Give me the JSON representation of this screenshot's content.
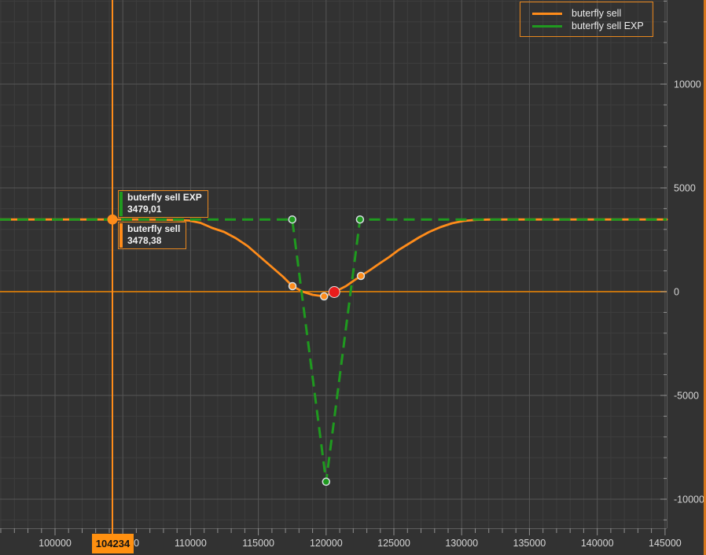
{
  "colors": {
    "background": "#323232",
    "grid_minor": "#3e3e3e",
    "grid_major": "#565656",
    "axis_boundary": "#5e5e5e",
    "tick": "#909090",
    "axis_text": "#d6d6d6",
    "orange": "#ff8c1a",
    "green": "#1f9a1f",
    "red": "#e81c1c",
    "zero_line": "#c3730f",
    "marker_ring": "#d7dfe4",
    "window_border": "#d4761c",
    "tooltip_border": "#e8871e",
    "crosshair_label_bg": "#ff9010",
    "crosshair_label_text": "#141414"
  },
  "legend": {
    "items": [
      {
        "label": "buterfly sell",
        "color": "#ff8c1a",
        "dashed": false
      },
      {
        "label": "buterfly sell EXP",
        "color": "#1f9a1f",
        "dashed": true
      }
    ]
  },
  "tooltips": {
    "exp": {
      "title": "buterfly sell EXP",
      "value": "3479,01",
      "accent": "#1f9a1f"
    },
    "sell": {
      "title": "buterfly sell",
      "value": "3478,38",
      "accent": "#ff8c1a"
    }
  },
  "crosshair": {
    "label": "104234",
    "x_value": 104234
  },
  "chart_data": {
    "type": "line",
    "x_range": [
      95940,
      145124
    ],
    "y_range": [
      -11401,
      14053
    ],
    "x_major_step": 5000,
    "x_minor_step": 1000,
    "y_major_step": 5000,
    "y_minor_step": 1000,
    "grid": true,
    "legend_position": "top-right",
    "x_tick_values": [
      100000,
      105000,
      110000,
      115000,
      120000,
      125000,
      130000,
      135000,
      140000,
      145000
    ],
    "x_tick_labels": [
      "100000",
      "105000",
      "110000",
      "115000",
      "120000",
      "125000",
      "130000",
      "135000",
      "140000",
      "145000"
    ],
    "y_tick_values": [
      10000,
      5000,
      0,
      -5000,
      -10000
    ],
    "y_tick_labels": [
      "10000",
      "5000",
      "0",
      "-5000",
      "-10000"
    ],
    "series": [
      {
        "name": "buterfly sell",
        "color": "#ff8c1a",
        "style": "solid",
        "points": [
          [
            95940,
            3478
          ],
          [
            103000,
            3478
          ],
          [
            104234,
            3478
          ],
          [
            106000,
            3477
          ],
          [
            107000,
            3474
          ],
          [
            108000,
            3466
          ],
          [
            109000,
            3452
          ],
          [
            109860,
            3430
          ],
          [
            110730,
            3314
          ],
          [
            111600,
            3068
          ],
          [
            112470,
            2879
          ],
          [
            113340,
            2576
          ],
          [
            114210,
            2197
          ],
          [
            115080,
            1704
          ],
          [
            115950,
            1212
          ],
          [
            116820,
            720
          ],
          [
            117516,
            265
          ],
          [
            118270,
            0
          ],
          [
            119000,
            -151
          ],
          [
            119850,
            -228
          ],
          [
            120600,
            -19
          ],
          [
            121460,
            265
          ],
          [
            122040,
            530
          ],
          [
            122562,
            758
          ],
          [
            123200,
            1023
          ],
          [
            123954,
            1364
          ],
          [
            124650,
            1667
          ],
          [
            125346,
            2008
          ],
          [
            126100,
            2311
          ],
          [
            126854,
            2614
          ],
          [
            127608,
            2879
          ],
          [
            128420,
            3106
          ],
          [
            129290,
            3295
          ],
          [
            130160,
            3409
          ],
          [
            131030,
            3460
          ],
          [
            131900,
            3472
          ],
          [
            133060,
            3477
          ],
          [
            136000,
            3478
          ],
          [
            145124,
            3478
          ]
        ]
      },
      {
        "name": "buterfly sell EXP",
        "color": "#1f9a1f",
        "style": "dashed",
        "points": [
          [
            95940,
            3479
          ],
          [
            117500,
            3479
          ],
          [
            120000,
            -9160
          ],
          [
            122500,
            3479
          ],
          [
            145124,
            3479
          ]
        ]
      }
    ],
    "markers": {
      "orange": [
        [
          117516,
          265
        ],
        [
          119850,
          -228
        ],
        [
          122562,
          758
        ]
      ],
      "green": [
        [
          117500,
          3479
        ],
        [
          120000,
          -9160
        ],
        [
          122500,
          3479
        ]
      ],
      "red": [
        [
          120600,
          -19
        ]
      ],
      "crosshair_dot": [
        [
          104234,
          3478
        ]
      ]
    },
    "current_values": {
      "buterfly_sell": "3478,38",
      "buterfly_sell_EXP": "3479,01"
    }
  }
}
